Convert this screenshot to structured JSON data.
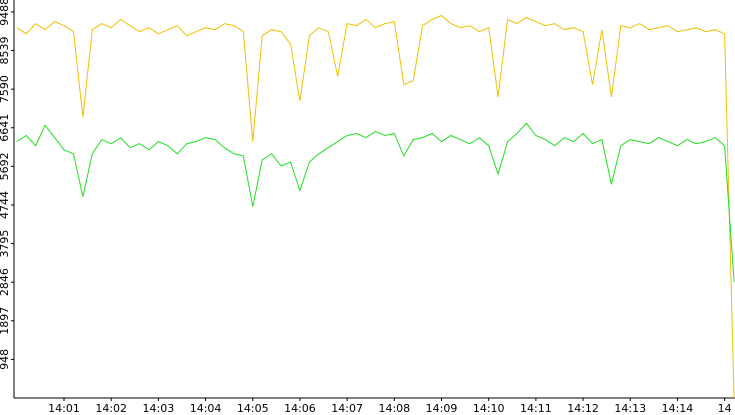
{
  "chart_data": {
    "type": "line",
    "x": [
      0,
      0.2,
      0.4,
      0.6,
      0.8,
      1,
      1.2,
      1.4,
      1.6,
      1.8,
      2,
      2.2,
      2.4,
      2.6,
      2.8,
      3,
      3.2,
      3.4,
      3.6,
      3.8,
      4,
      4.2,
      4.4,
      4.6,
      4.8,
      5,
      5.2,
      5.4,
      5.6,
      5.8,
      6,
      6.2,
      6.4,
      6.6,
      6.8,
      7,
      7.2,
      7.4,
      7.6,
      7.8,
      8,
      8.2,
      8.4,
      8.6,
      8.8,
      9,
      9.2,
      9.4,
      9.6,
      9.8,
      10,
      10.2,
      10.4,
      10.6,
      10.8,
      11,
      11.2,
      11.4,
      11.6,
      11.8,
      12,
      12.2,
      12.4,
      12.6,
      12.8,
      13,
      13.2,
      13.4,
      13.6,
      13.8,
      14,
      14.2,
      14.4,
      14.6,
      14.8,
      15,
      15.2
    ],
    "series": [
      {
        "color": "#f0c000",
        "values": [
          9100,
          8950,
          9200,
          9050,
          9250,
          9150,
          9000,
          6900,
          9050,
          9200,
          9100,
          9300,
          9150,
          9000,
          9100,
          8950,
          9050,
          9150,
          8900,
          9000,
          9100,
          9050,
          9200,
          9150,
          9000,
          6300,
          8900,
          9050,
          9000,
          8700,
          7300,
          8900,
          9100,
          9000,
          7900,
          9200,
          9150,
          9300,
          9100,
          9200,
          9250,
          7700,
          7800,
          9150,
          9300,
          9400,
          9200,
          9100,
          9150,
          9000,
          9100,
          7400,
          9300,
          9200,
          9350,
          9250,
          9150,
          9200,
          9050,
          9100,
          9000,
          7700,
          9050,
          7400,
          9150,
          9100,
          9200,
          9050,
          9100,
          9150,
          9000,
          9050,
          9100,
          9000,
          9050,
          8950,
          0
        ]
      },
      {
        "color": "#22dd22",
        "values": [
          6300,
          6450,
          6200,
          6700,
          6400,
          6100,
          6000,
          4950,
          6000,
          6350,
          6250,
          6400,
          6150,
          6250,
          6100,
          6300,
          6200,
          6000,
          6250,
          6300,
          6400,
          6350,
          6150,
          6000,
          5950,
          4700,
          5850,
          6000,
          5700,
          5800,
          5100,
          5800,
          6000,
          6150,
          6300,
          6450,
          6500,
          6400,
          6550,
          6450,
          6500,
          5950,
          6350,
          6400,
          6500,
          6300,
          6450,
          6350,
          6250,
          6400,
          6200,
          5500,
          6300,
          6500,
          6750,
          6450,
          6350,
          6200,
          6400,
          6300,
          6500,
          6250,
          6350,
          5250,
          6200,
          6350,
          6300,
          6250,
          6400,
          6300,
          6200,
          6350,
          6250,
          6300,
          6400,
          6200,
          2850
        ]
      }
    ],
    "xlim": [
      -0.06,
      15.22
    ],
    "xticks": [
      {
        "value": 1,
        "label": "14:01"
      },
      {
        "value": 2,
        "label": "14:02"
      },
      {
        "value": 3,
        "label": "14:03"
      },
      {
        "value": 4,
        "label": "14:04"
      },
      {
        "value": 5,
        "label": "14:05"
      },
      {
        "value": 6,
        "label": "14:06"
      },
      {
        "value": 7,
        "label": "14:07"
      },
      {
        "value": 8,
        "label": "14:08"
      },
      {
        "value": 9,
        "label": "14:09"
      },
      {
        "value": 10,
        "label": "14:10"
      },
      {
        "value": 11,
        "label": "14:11"
      },
      {
        "value": 12,
        "label": "14:12"
      },
      {
        "value": 13,
        "label": "14:13"
      },
      {
        "value": 14,
        "label": "14:14"
      },
      {
        "value": 15,
        "label": "14"
      }
    ],
    "ylim": [
      0,
      9780
    ],
    "yticks": [
      948,
      1897,
      2846,
      3795,
      4744,
      5692,
      6641,
      7590,
      8539,
      9488
    ]
  }
}
